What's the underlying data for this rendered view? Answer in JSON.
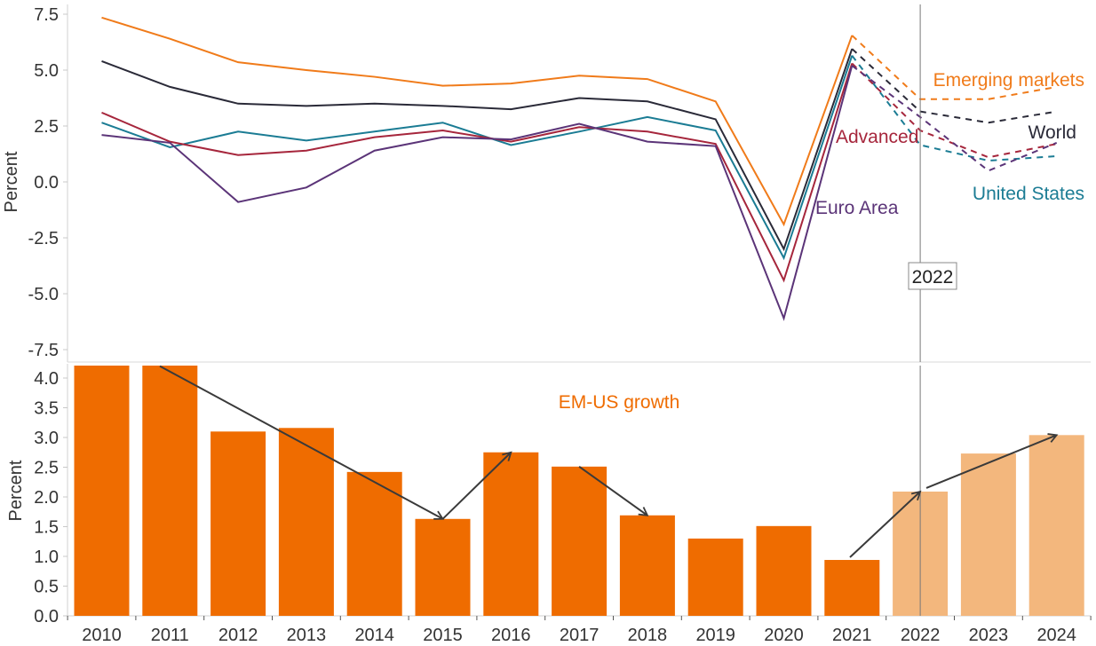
{
  "chart_data": [
    {
      "type": "line",
      "title": "",
      "xlabel": "",
      "ylabel": "Percent",
      "x": [
        "2010",
        "2011",
        "2012",
        "2013",
        "2014",
        "2015",
        "2016",
        "2017",
        "2018",
        "2019",
        "2020",
        "2021",
        "2022",
        "2023",
        "2024"
      ],
      "ylim": [
        -8.0,
        7.9
      ],
      "yticks": [
        7.5,
        5.0,
        2.5,
        0.0,
        -2.5,
        -5.0,
        -7.5
      ],
      "ytick_labels": [
        "7.5",
        "5.0",
        "2.5",
        "0.0",
        "-2.5",
        "-5.0",
        "-7.5"
      ],
      "grid": false,
      "projection_start": "2021",
      "reference_line": {
        "x": "2022",
        "label": "2022"
      },
      "series": [
        {
          "name": "Emerging markets",
          "color": "#F07B1A",
          "label_position": "right-upper",
          "values": [
            7.35,
            6.4,
            5.35,
            5.0,
            4.7,
            4.3,
            4.4,
            4.75,
            4.6,
            3.6,
            -1.9,
            6.55,
            3.7,
            3.7,
            4.25
          ]
        },
        {
          "name": "World",
          "color": "#2A2A38",
          "label_position": "right",
          "values": [
            5.4,
            4.25,
            3.5,
            3.4,
            3.5,
            3.4,
            3.25,
            3.75,
            3.6,
            2.8,
            -3.0,
            5.95,
            3.15,
            2.65,
            3.15
          ]
        },
        {
          "name": "United States",
          "color": "#1B7C94",
          "label_position": "right-lower",
          "values": [
            2.65,
            1.55,
            2.25,
            1.85,
            2.25,
            2.65,
            1.65,
            2.25,
            2.9,
            2.3,
            -3.4,
            5.65,
            1.65,
            0.95,
            1.15
          ]
        },
        {
          "name": "Advanced",
          "color": "#A6263C",
          "label_position": "near-2021",
          "values": [
            3.1,
            1.8,
            1.2,
            1.4,
            2.0,
            2.3,
            1.8,
            2.45,
            2.25,
            1.7,
            -4.4,
            5.3,
            2.3,
            1.1,
            1.7
          ]
        },
        {
          "name": "Euro Area",
          "color": "#5B3478",
          "label_position": "near-2021-low",
          "values": [
            2.1,
            1.75,
            -0.9,
            -0.25,
            1.4,
            2.0,
            1.9,
            2.6,
            1.8,
            1.6,
            -6.1,
            5.2,
            2.9,
            0.5,
            1.75
          ]
        }
      ]
    },
    {
      "type": "bar",
      "title": "",
      "annotation": "EM-US growth",
      "xlabel": "",
      "ylabel": "Percent",
      "categories": [
        "2010",
        "2011",
        "2012",
        "2013",
        "2014",
        "2015",
        "2016",
        "2017",
        "2018",
        "2019",
        "2020",
        "2021",
        "2022",
        "2023",
        "2024"
      ],
      "values": [
        4.6,
        4.5,
        3.1,
        3.16,
        2.42,
        1.63,
        2.75,
        2.51,
        1.69,
        1.3,
        1.51,
        0.94,
        2.09,
        2.73,
        3.04
      ],
      "clipped_above": 4.2,
      "projected_from": "2022",
      "ylim": [
        0.0,
        4.2
      ],
      "yticks": [
        4.0,
        3.5,
        3.0,
        2.5,
        2.0,
        1.5,
        1.0,
        0.5,
        0.0
      ],
      "ytick_labels": [
        "4.0",
        "3.5",
        "3.0",
        "2.5",
        "2.0",
        "1.5",
        "1.0",
        "0.5",
        "0.0"
      ],
      "colors": {
        "actual": "#EF6C00",
        "projected": "#F3B77D"
      },
      "reference_line": {
        "x": "2022"
      },
      "trend_arrows": [
        {
          "from": [
            "2011",
            4.2
          ],
          "to": [
            "2015",
            1.63
          ]
        },
        {
          "from": [
            "2015",
            1.63
          ],
          "to": [
            "2016",
            2.75
          ]
        },
        {
          "from": [
            "2017",
            2.51
          ],
          "to": [
            "2018",
            1.69
          ]
        },
        {
          "from": [
            "2021",
            0.94
          ],
          "to": [
            "2022",
            2.09
          ]
        },
        {
          "from": [
            "2022",
            2.15
          ],
          "to": [
            "2024",
            3.04
          ]
        }
      ]
    }
  ]
}
